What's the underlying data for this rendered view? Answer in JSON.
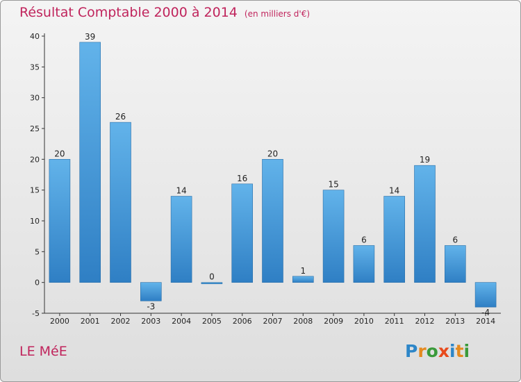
{
  "chart_data": {
    "type": "bar",
    "title": "Résultat Comptable 2000 à 2014",
    "subtitle": "(en milliers d'€)",
    "categories": [
      "2000",
      "2001",
      "2002",
      "2003",
      "2004",
      "2005",
      "2006",
      "2007",
      "2008",
      "2009",
      "2010",
      "2011",
      "2012",
      "2013",
      "2014"
    ],
    "values": [
      20,
      39,
      26,
      -3,
      14,
      0,
      16,
      20,
      1,
      15,
      6,
      14,
      19,
      6,
      -4
    ],
    "ylim": [
      -5,
      40
    ],
    "yticks": [
      -5,
      0,
      5,
      10,
      15,
      20,
      25,
      30,
      35,
      40
    ],
    "xlabel": "",
    "ylabel": "",
    "grid": false,
    "colors": {
      "bar_top": "#62b3ea",
      "bar_bottom": "#2f7fc4",
      "accent": "#c0245c"
    }
  },
  "footer": {
    "commune": "LE MéE",
    "brand_letters": [
      "P",
      "r",
      "o",
      "x",
      "i",
      "t",
      "i"
    ],
    "brand_colors": [
      "#2d86c8",
      "#e58a1f",
      "#3a9a3a",
      "#e84a1c",
      "#2d86c8",
      "#e58a1f",
      "#3a9a3a"
    ]
  }
}
